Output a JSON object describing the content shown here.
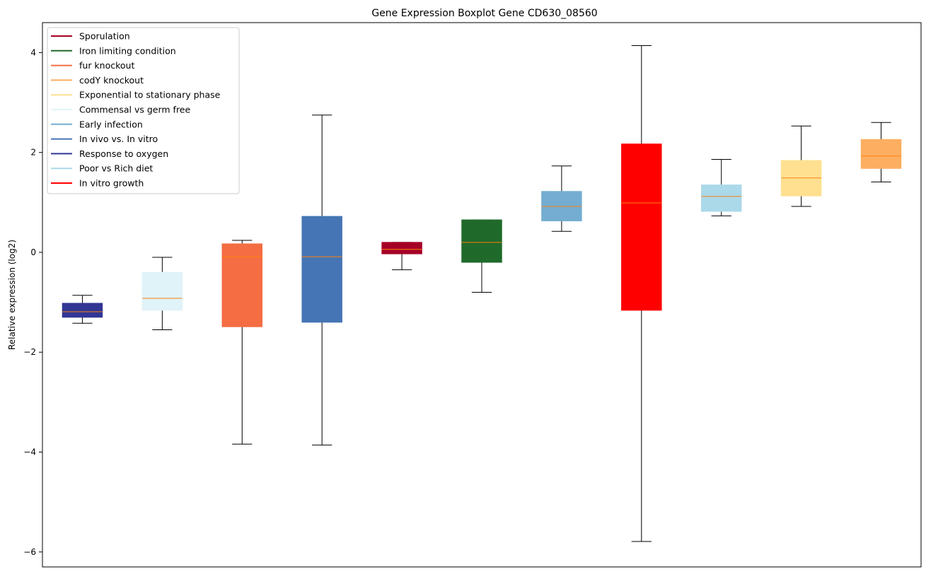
{
  "chart_data": {
    "type": "box",
    "title": "Gene Expression Boxplot Gene CD630_08560",
    "xlabel": "",
    "ylabel": "Relative expression (log2)",
    "ylim": [
      -6.3,
      4.6
    ],
    "yticks": [
      -6,
      -4,
      -2,
      0,
      2,
      4
    ],
    "grid": false,
    "legend_position": "top-left",
    "median_color": "#ff7f0e",
    "legend": [
      {
        "label": "Sporulation",
        "color": "#a50026"
      },
      {
        "label": "Iron limiting condition",
        "color": "#1f6a2b"
      },
      {
        "label": "fur knockout",
        "color": "#f46d43"
      },
      {
        "label": "codY knockout",
        "color": "#fdae61"
      },
      {
        "label": "Exponential to stationary phase",
        "color": "#fee090"
      },
      {
        "label": "Commensal vs germ free",
        "color": "#e0f3f8"
      },
      {
        "label": "Early infection",
        "color": "#74add1"
      },
      {
        "label": "In vivo vs. In vitro",
        "color": "#4575b4"
      },
      {
        "label": "Response to oxygen",
        "color": "#313695"
      },
      {
        "label": "Poor vs Rich diet",
        "color": "#abd9e9"
      },
      {
        "label": "In vitro growth",
        "color": "#ff0000"
      }
    ],
    "boxes": [
      {
        "series": "Response to oxygen",
        "color": "#313695",
        "whisker_low": -1.42,
        "q1": -1.3,
        "median": -1.19,
        "q3": -1.02,
        "whisker_high": -0.86
      },
      {
        "series": "Commensal vs germ free",
        "color": "#e0f3f8",
        "whisker_low": -1.55,
        "q1": -1.16,
        "median": -0.92,
        "q3": -0.4,
        "whisker_high": -0.1
      },
      {
        "series": "fur knockout",
        "color": "#f46d43",
        "whisker_low": -3.84,
        "q1": -1.49,
        "median": -0.09,
        "q3": 0.17,
        "whisker_high": 0.24
      },
      {
        "series": "In vivo vs. In vitro",
        "color": "#4575b4",
        "whisker_low": -3.86,
        "q1": -1.4,
        "median": -0.09,
        "q3": 0.72,
        "whisker_high": 2.75
      },
      {
        "series": "Sporulation",
        "color": "#a50026",
        "whisker_low": -0.35,
        "q1": -0.03,
        "median": 0.06,
        "q3": 0.2,
        "whisker_high": 0.2
      },
      {
        "series": "Iron limiting condition",
        "color": "#1f6a2b",
        "whisker_low": -0.8,
        "q1": -0.2,
        "median": 0.2,
        "q3": 0.65,
        "whisker_high": 0.65
      },
      {
        "series": "Early infection",
        "color": "#74add1",
        "whisker_low": 0.42,
        "q1": 0.63,
        "median": 0.92,
        "q3": 1.22,
        "whisker_high": 1.73
      },
      {
        "series": "In vitro growth",
        "color": "#ff0000",
        "whisker_low": -5.79,
        "q1": -1.16,
        "median": 0.99,
        "q3": 2.17,
        "whisker_high": 4.14
      },
      {
        "series": "Poor vs Rich diet",
        "color": "#abd9e9",
        "whisker_low": 0.73,
        "q1": 0.82,
        "median": 1.12,
        "q3": 1.35,
        "whisker_high": 1.86
      },
      {
        "series": "Exponential to stationary phase",
        "color": "#fee090",
        "whisker_low": 0.92,
        "q1": 1.13,
        "median": 1.49,
        "q3": 1.84,
        "whisker_high": 2.53
      },
      {
        "series": "codY knockout",
        "color": "#fdae61",
        "whisker_low": 1.41,
        "q1": 1.68,
        "median": 1.93,
        "q3": 2.26,
        "whisker_high": 2.6
      }
    ]
  }
}
